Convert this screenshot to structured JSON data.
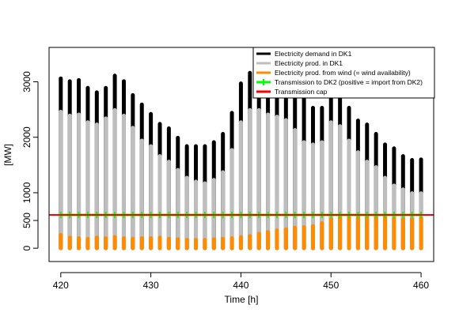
{
  "chart_data": {
    "type": "spike",
    "x_label": "Time [h]",
    "y_label": "[MW]",
    "x": [
      420,
      421,
      422,
      423,
      424,
      425,
      426,
      427,
      428,
      429,
      430,
      431,
      432,
      433,
      434,
      435,
      436,
      437,
      438,
      439,
      440,
      441,
      442,
      443,
      444,
      445,
      446,
      447,
      448,
      449,
      450,
      451,
      452,
      453,
      454,
      455,
      456,
      457,
      458,
      459,
      460
    ],
    "series": [
      {
        "name": "Electricity demand in DK1",
        "color": "#000000",
        "style": "spike",
        "values": [
          3060,
          3010,
          3030,
          2890,
          2810,
          2890,
          3110,
          3010,
          2760,
          2590,
          2420,
          2240,
          2160,
          1990,
          1840,
          1840,
          1840,
          1910,
          2060,
          2440,
          2970,
          3160,
          3250,
          3300,
          3300,
          3250,
          2890,
          2700,
          2530,
          2530,
          2910,
          2910,
          2530,
          2300,
          2230,
          2060,
          1870,
          1800,
          1660,
          1590,
          1600
        ]
      },
      {
        "name": "Electricity prod. in DK1",
        "color": "#bebebe",
        "style": "spike",
        "values": [
          2460,
          2390,
          2410,
          2270,
          2230,
          2340,
          2490,
          2390,
          2170,
          1940,
          1840,
          1660,
          1560,
          1410,
          1270,
          1200,
          1170,
          1230,
          1370,
          1770,
          2270,
          2490,
          2490,
          2410,
          2370,
          2310,
          2130,
          1910,
          1870,
          1910,
          2270,
          2200,
          1940,
          1730,
          1560,
          1460,
          1270,
          1130,
          1060,
          990,
          990
        ]
      },
      {
        "name": "Electricity prod. from wind (= wind availability)",
        "color": "#ff8c00",
        "style": "spike",
        "values": [
          240,
          190,
          180,
          170,
          190,
          180,
          200,
          180,
          170,
          180,
          180,
          190,
          170,
          160,
          150,
          150,
          150,
          160,
          170,
          180,
          200,
          220,
          260,
          290,
          320,
          340,
          370,
          380,
          400,
          450,
          520,
          560,
          560,
          560,
          560,
          560,
          560,
          540,
          520,
          520,
          540
        ]
      },
      {
        "name": "Transmission to DK2 (positive = import from DK2)",
        "color": "#00ff00",
        "style": "line",
        "values": [
          600,
          600,
          600,
          600,
          600,
          600,
          600,
          600,
          600,
          600,
          600,
          600,
          600,
          600,
          600,
          600,
          600,
          600,
          600,
          600,
          600,
          600,
          600,
          600,
          600,
          600,
          600,
          600,
          600,
          600,
          600,
          600,
          600,
          600,
          600,
          600,
          600,
          600,
          600,
          600,
          600
        ]
      }
    ],
    "cap": {
      "name": "Transmission cap",
      "color": "#ff0000",
      "value": 600
    },
    "xlim": [
      418.7,
      461.4
    ],
    "xticks": [
      420,
      430,
      440,
      450,
      460
    ],
    "ylim": [
      -240,
      3620
    ],
    "yticks": [
      0,
      500,
      1000,
      2000,
      3000
    ],
    "legend": "topright"
  }
}
